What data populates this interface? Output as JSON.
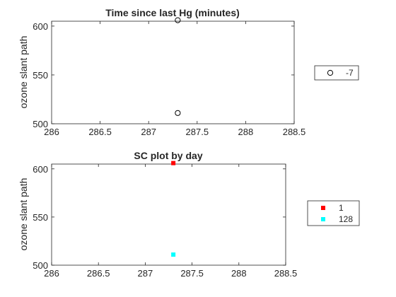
{
  "chart_data": [
    {
      "type": "scatter",
      "title": "Time since last Hg (minutes)",
      "xlabel": "",
      "ylabel": "ozone slant path",
      "xlim": [
        286,
        288.5
      ],
      "ylim": [
        500,
        605
      ],
      "xticks": [
        "286",
        "286.5",
        "287",
        "287.5",
        "288",
        "288.5"
      ],
      "yticks": [
        "500",
        "550",
        "600"
      ],
      "marker": "open-circle",
      "legend_position": "right",
      "series": [
        {
          "name": "-7",
          "color": "#000000",
          "points": [
            [
              287.3,
              606
            ],
            [
              287.3,
              511
            ]
          ]
        }
      ]
    },
    {
      "type": "scatter",
      "title": "SC plot by day",
      "xlabel": "",
      "ylabel": "ozone slant path",
      "xlim": [
        286,
        288.5
      ],
      "ylim": [
        500,
        605
      ],
      "xticks": [
        "286",
        "286.5",
        "287",
        "287.5",
        "288",
        "288.5"
      ],
      "yticks": [
        "500",
        "550",
        "600"
      ],
      "marker": "filled-square",
      "legend_position": "right",
      "series": [
        {
          "name": "1",
          "color": "#ff0000",
          "points": [
            [
              287.3,
              606
            ]
          ]
        },
        {
          "name": "128",
          "color": "#00ffff",
          "points": [
            [
              287.3,
              511
            ]
          ]
        }
      ]
    }
  ]
}
